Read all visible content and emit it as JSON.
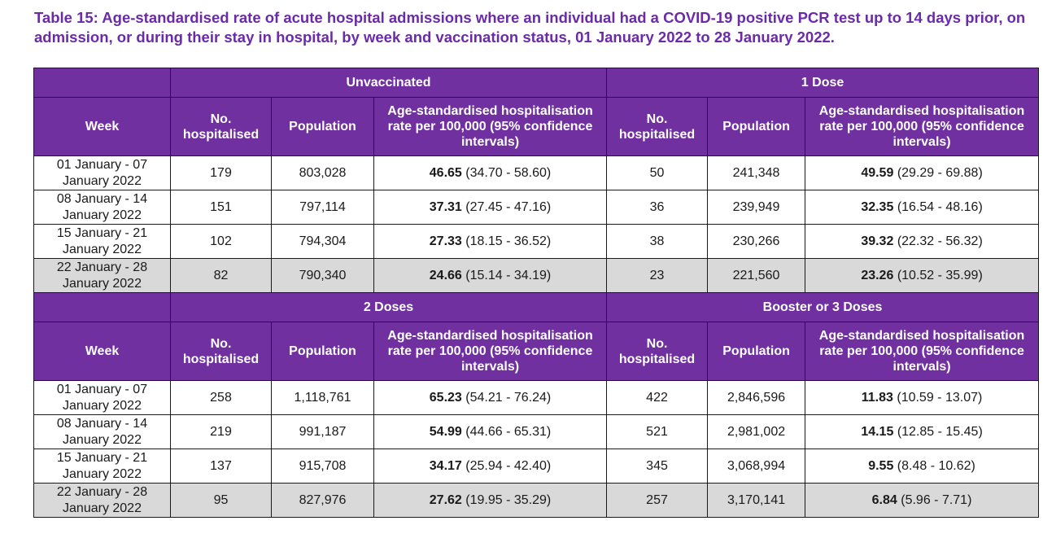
{
  "title": "Table 15: Age-standardised rate of acute hospital admissions where an individual had a COVID-19 positive PCR test up to 14 days prior, on admission, or during their stay in hospital, by week and vaccination status, 01 January 2022 to 28 January 2022.",
  "colors": {
    "header_bg": "#7030a0",
    "title_text": "#6b2aa8",
    "shaded_row": "#d9d9d9"
  },
  "headers": {
    "week": "Week",
    "no_hospitalised": "No. hospitalised",
    "population": "Population",
    "rate": "Age-standardised hospitalisation rate per 100,000 (95% confidence intervals)"
  },
  "top": {
    "group_left": "Unvaccinated",
    "group_right": "1 Dose",
    "rows": [
      {
        "week": "01 January - 07 January 2022",
        "l_no": "179",
        "l_pop": "803,028",
        "l_rate": "46.65",
        "l_ci": "(34.70 - 58.60)",
        "r_no": "50",
        "r_pop": "241,348",
        "r_rate": "49.59",
        "r_ci": "(29.29 - 69.88)"
      },
      {
        "week": "08 January - 14 January 2022",
        "l_no": "151",
        "l_pop": "797,114",
        "l_rate": "37.31",
        "l_ci": "(27.45 - 47.16)",
        "r_no": "36",
        "r_pop": "239,949",
        "r_rate": "32.35",
        "r_ci": "(16.54 - 48.16)"
      },
      {
        "week": "15 January - 21 January 2022",
        "l_no": "102",
        "l_pop": "794,304",
        "l_rate": "27.33",
        "l_ci": "(18.15 - 36.52)",
        "r_no": "38",
        "r_pop": "230,266",
        "r_rate": "39.32",
        "r_ci": "(22.32 - 56.32)"
      },
      {
        "week": "22 January - 28 January 2022",
        "l_no": "82",
        "l_pop": "790,340",
        "l_rate": "24.66",
        "l_ci": "(15.14 - 34.19)",
        "r_no": "23",
        "r_pop": "221,560",
        "r_rate": "23.26",
        "r_ci": "(10.52 - 35.99)"
      }
    ]
  },
  "bottom": {
    "group_left": "2 Doses",
    "group_right": "Booster or 3 Doses",
    "rows": [
      {
        "week": "01 January - 07 January 2022",
        "l_no": "258",
        "l_pop": "1,118,761",
        "l_rate": "65.23",
        "l_ci": "(54.21 - 76.24)",
        "r_no": "422",
        "r_pop": "2,846,596",
        "r_rate": "11.83",
        "r_ci": "(10.59 - 13.07)"
      },
      {
        "week": "08 January - 14 January 2022",
        "l_no": "219",
        "l_pop": "991,187",
        "l_rate": "54.99",
        "l_ci": "(44.66 - 65.31)",
        "r_no": "521",
        "r_pop": "2,981,002",
        "r_rate": "14.15",
        "r_ci": "(12.85 - 15.45)"
      },
      {
        "week": "15 January - 21 January 2022",
        "l_no": "137",
        "l_pop": "915,708",
        "l_rate": "34.17",
        "l_ci": "(25.94 - 42.40)",
        "r_no": "345",
        "r_pop": "3,068,994",
        "r_rate": "9.55",
        "r_ci": "(8.48 - 10.62)"
      },
      {
        "week": "22 January - 28 January 2022",
        "l_no": "95",
        "l_pop": "827,976",
        "l_rate": "27.62",
        "l_ci": "(19.95 - 35.29)",
        "r_no": "257",
        "r_pop": "3,170,141",
        "r_rate": "6.84",
        "r_ci": "(5.96 - 7.71)"
      }
    ]
  }
}
